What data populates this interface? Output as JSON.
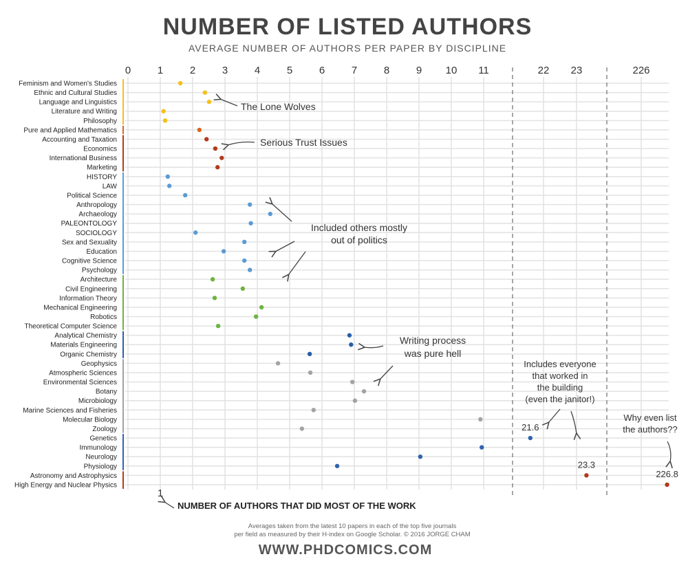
{
  "chart_data": {
    "type": "scatter",
    "title": "NUMBER OF LISTED AUTHORS",
    "subtitle": "AVERAGE NUMBER OF AUTHORS PER PAPER BY DISCIPLINE",
    "x_ticks": [
      "0",
      "1",
      "2",
      "3",
      "4",
      "5",
      "6",
      "7",
      "8",
      "9",
      "10",
      "11",
      "22",
      "23",
      "226"
    ],
    "x_segments": [
      [
        0,
        11.8
      ],
      [
        21.3,
        24.2
      ],
      [
        225.3,
        227.2
      ]
    ],
    "grid": true,
    "categories": [
      "Feminism and Women's Studies",
      "Ethnic and Cultural Studies",
      "Language and Linguistics",
      "Literature and Writing",
      "Philosophy",
      "Pure and Applied Mathematics",
      "Accounting and Taxation",
      "Economics",
      "International Business",
      "Marketing",
      "HISTORY",
      "LAW",
      "Political Science",
      "Anthropology",
      "Archaeology",
      "PALEONTOLOGY",
      "SOCIOLOGY",
      "Sex and Sexuality",
      "Education",
      "Cognitive Science",
      "Psychology",
      "Architecture",
      "Civil Engineering",
      "Information Theory",
      "Mechanical Engineering",
      "Robotics",
      "Theoretical Computer Science",
      "Analytical Chemistry",
      "Materials Engineering",
      "Organic Chemistry",
      "Geophysics",
      "Atmospheric Sciences",
      "Environmental Sciences",
      "Botany",
      "Microbiology",
      "Marine Sciences and Fisheries",
      "Molecular Biology",
      "Zoology",
      "Genetics",
      "Immunology",
      "Neurology",
      "Physiology",
      "Astronomy and Astrophysics",
      "High Energy and Nuclear Physics"
    ],
    "values": [
      1.62,
      2.38,
      2.51,
      1.1,
      1.15,
      2.21,
      2.43,
      2.7,
      2.9,
      2.77,
      1.23,
      1.28,
      1.77,
      3.77,
      4.4,
      3.8,
      2.09,
      3.6,
      2.96,
      3.6,
      3.77,
      2.62,
      3.55,
      2.68,
      4.13,
      3.96,
      2.79,
      6.85,
      6.9,
      5.62,
      4.64,
      5.64,
      6.94,
      7.3,
      7.02,
      5.74,
      10.9,
      5.38,
      21.6,
      10.94,
      9.04,
      6.47,
      23.3,
      226.8
    ],
    "groups": [
      0,
      0,
      0,
      0,
      0,
      1,
      2,
      2,
      2,
      2,
      3,
      3,
      3,
      3,
      3,
      3,
      3,
      3,
      3,
      3,
      3,
      4,
      4,
      4,
      4,
      4,
      4,
      5,
      5,
      5,
      6,
      6,
      6,
      6,
      6,
      6,
      6,
      6,
      7,
      7,
      7,
      7,
      8,
      8
    ],
    "group_colors": [
      "#f5c01a",
      "#d9661c",
      "#b23a1e",
      "#5b9bd5",
      "#6db33f",
      "#2a5ea8",
      "#a3a3a3",
      "#2f62b0",
      "#b5381c"
    ],
    "value_labels": {
      "38": "21.6",
      "42": "23.3",
      "43": "226.8"
    },
    "annotations": {
      "lone_wolves": "The Lone Wolves",
      "trust_issues": "Serious Trust Issues",
      "politics_1": "Included others mostly",
      "politics_2": "out of politics",
      "writing_1": "Writing process",
      "writing_2": "was pure hell",
      "building_1": "Includes everyone",
      "building_2": "that worked in",
      "building_3": "the building",
      "building_4": "(even the janitor!)",
      "why_1": "Why even list",
      "why_2": "the authors??",
      "one_value": "1",
      "work_note": "NUMBER OF AUTHORS THAT DID MOST OF THE WORK"
    },
    "footer": {
      "line1": "Averages taken from the latest 10 papers in each of the top five journals",
      "line2": "per field as measured by their H-index on Google Scholar. © 2016 JORGE CHAM",
      "url": "WWW.PHDCOMICS.COM"
    }
  }
}
